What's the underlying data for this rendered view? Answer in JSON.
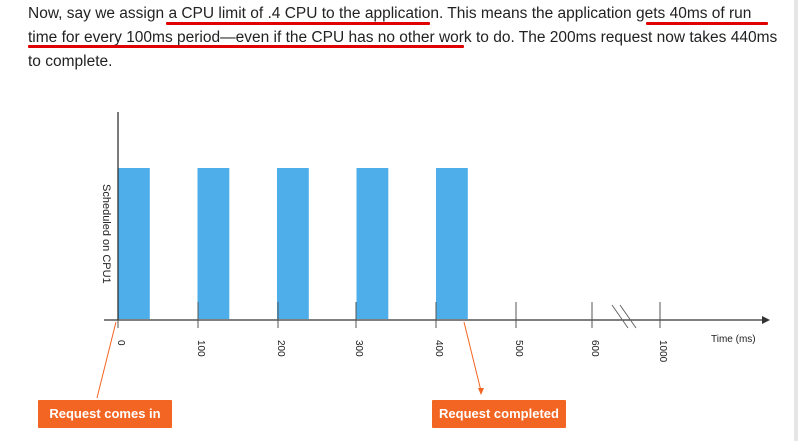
{
  "paragraph": {
    "t1": "Now, say we assign ",
    "t2": "a CPU limit of .4 CPU to the application",
    "t3": ". This means the application gets ",
    "t4": "40ms of run time for every 100ms period—even if the CPU has no other work to do",
    "t5": ". The 200ms request now takes 440ms to complete."
  },
  "colors": {
    "bar": "#4daeea",
    "underline": "#e00000",
    "callout": "#f26522",
    "axis": "#333333"
  },
  "chart_data": {
    "type": "bar",
    "ylabel": "Scheduled on CPU1",
    "xlabel": "Time (ms)",
    "x_ticks": [
      "0",
      "100",
      "200",
      "300",
      "400",
      "500",
      "600",
      "1000"
    ],
    "axis_break": "between 600 and 1000",
    "bars": [
      {
        "start_ms": 0,
        "end_ms": 40
      },
      {
        "start_ms": 100,
        "end_ms": 140
      },
      {
        "start_ms": 200,
        "end_ms": 240
      },
      {
        "start_ms": 300,
        "end_ms": 340
      },
      {
        "start_ms": 400,
        "end_ms": 440
      }
    ],
    "annotations": [
      {
        "label": "Request comes in",
        "at_ms": 0
      },
      {
        "label": "Request completed",
        "at_ms": 440
      }
    ]
  }
}
